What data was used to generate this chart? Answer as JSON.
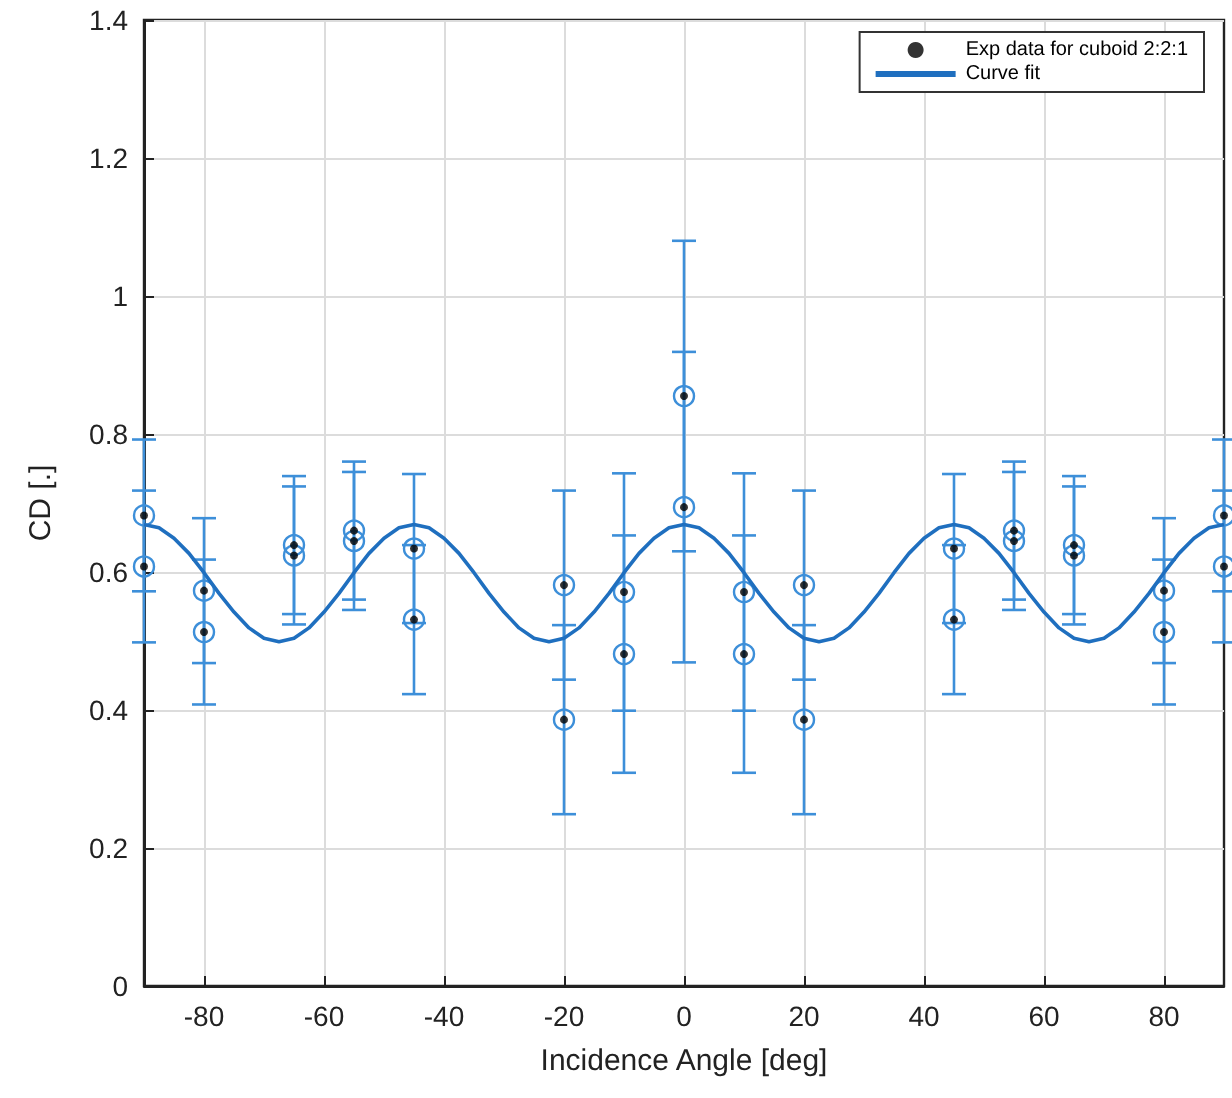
{
  "chart_data": {
    "type": "scatter",
    "xlabel": "Incidence Angle [deg]",
    "ylabel": "CD [.]",
    "xlim": [
      -90,
      90
    ],
    "xticks": [
      -80,
      -60,
      -40,
      -20,
      0,
      20,
      40,
      60,
      80
    ],
    "ylim": [
      0,
      1.4
    ],
    "yticks": [
      0,
      0.2,
      0.4,
      0.6,
      0.8,
      1,
      1.2,
      1.4
    ],
    "grid": true,
    "legend": "top right",
    "series": [
      {
        "name": "Exp data for cuboid 2:2:1",
        "color": "#000000",
        "marker": "circle",
        "x": [
          -90,
          -90,
          -80,
          -80,
          -65,
          -65,
          -55,
          -55,
          -45,
          -45,
          -20,
          -20,
          -10,
          -10,
          0,
          0,
          10,
          10,
          20,
          20,
          45,
          45,
          55,
          55,
          65,
          65,
          80,
          80,
          90,
          90
        ],
        "values": [
          0.682,
          0.608,
          0.573,
          0.513,
          0.639,
          0.624,
          0.66,
          0.645,
          0.634,
          0.531,
          0.581,
          0.386,
          0.571,
          0.481,
          0.855,
          0.694,
          0.571,
          0.481,
          0.581,
          0.386,
          0.634,
          0.531,
          0.66,
          0.645,
          0.639,
          0.624,
          0.573,
          0.513,
          0.682,
          0.608
        ],
        "errors": [
          0.11,
          0.11,
          0.105,
          0.105,
          0.1,
          0.1,
          0.1,
          0.1,
          0.108,
          0.108,
          0.137,
          0.137,
          0.172,
          0.172,
          0.225,
          0.225,
          0.172,
          0.172,
          0.137,
          0.137,
          0.108,
          0.108,
          0.1,
          0.1,
          0.1,
          0.1,
          0.105,
          0.105,
          0.11,
          0.11
        ]
      },
      {
        "type": "line",
        "name": "Curve fit",
        "color": "#1f6fbf",
        "marker": "none",
        "x": [
          -90,
          -87.5,
          -85,
          -82.5,
          -80,
          -77.5,
          -75,
          -72.5,
          -70,
          -67.5,
          -65,
          -62.5,
          -60,
          -57.5,
          -55,
          -52.5,
          -50,
          -47.5,
          -45,
          -42.5,
          -40,
          -37.5,
          -35,
          -32.5,
          -30,
          -27.5,
          -25,
          -22.5,
          -20,
          -17.5,
          -15,
          -12.5,
          -10,
          -7.5,
          -5,
          -2.5,
          0,
          2.5,
          5,
          7.5,
          10,
          12.5,
          15,
          17.5,
          20,
          22.5,
          25,
          27.5,
          30,
          32.5,
          35,
          37.5,
          40,
          42.5,
          45,
          47.5,
          50,
          52.5,
          55,
          57.5,
          60,
          62.5,
          65,
          67.5,
          70,
          72.5,
          75,
          77.5,
          80,
          82.5,
          85,
          87.5,
          90
        ],
        "values": [
          0.669,
          0.664,
          0.649,
          0.627,
          0.599,
          0.569,
          0.542,
          0.519,
          0.504,
          0.499,
          0.504,
          0.519,
          0.542,
          0.569,
          0.599,
          0.627,
          0.649,
          0.664,
          0.669,
          0.664,
          0.649,
          0.627,
          0.599,
          0.569,
          0.542,
          0.519,
          0.504,
          0.499,
          0.504,
          0.519,
          0.542,
          0.569,
          0.599,
          0.627,
          0.649,
          0.664,
          0.669,
          0.664,
          0.649,
          0.627,
          0.599,
          0.569,
          0.542,
          0.519,
          0.504,
          0.499,
          0.504,
          0.519,
          0.542,
          0.569,
          0.599,
          0.627,
          0.649,
          0.664,
          0.669,
          0.664,
          0.649,
          0.627,
          0.599,
          0.569,
          0.542,
          0.519,
          0.504,
          0.499,
          0.504,
          0.519,
          0.542,
          0.569,
          0.599,
          0.627,
          0.649,
          0.664,
          0.669
        ]
      }
    ]
  }
}
